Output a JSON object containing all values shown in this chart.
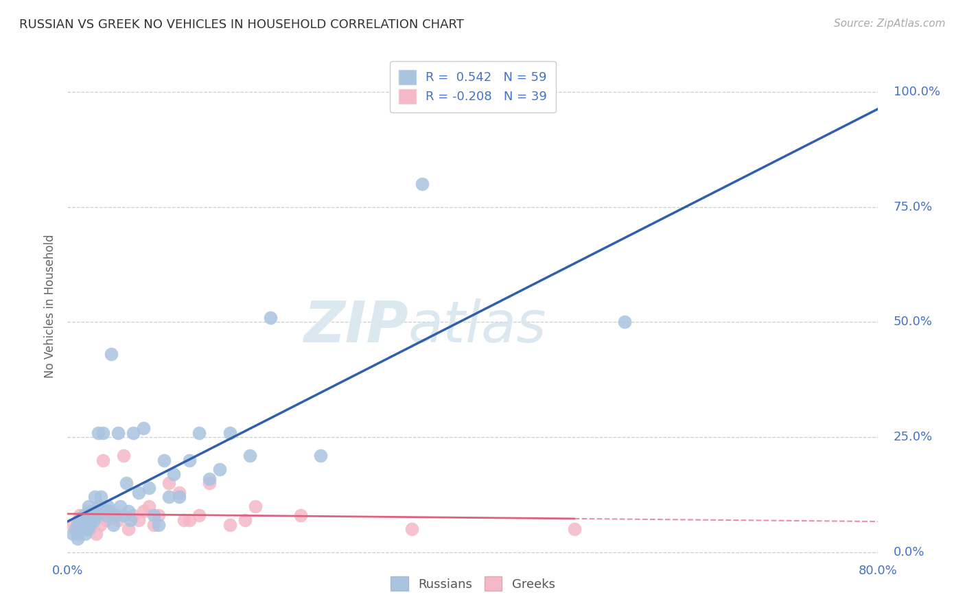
{
  "title": "RUSSIAN VS GREEK NO VEHICLES IN HOUSEHOLD CORRELATION CHART",
  "source": "Source: ZipAtlas.com",
  "ylabel": "No Vehicles in Household",
  "xlim": [
    0.0,
    0.8
  ],
  "ylim": [
    -0.01,
    1.08
  ],
  "yticks": [
    0.0,
    0.25,
    0.5,
    0.75,
    1.0
  ],
  "ytick_labels": [
    "0.0%",
    "25.0%",
    "50.0%",
    "75.0%",
    "100.0%"
  ],
  "xtick_labels": [
    "0.0%",
    "80.0%"
  ],
  "xtick_positions": [
    0.0,
    0.8
  ],
  "background_color": "#ffffff",
  "grid_color": "#cccccc",
  "watermark_zip": "ZIP",
  "watermark_atlas": "atlas",
  "russian_color": "#a8c4e0",
  "greek_color": "#f4b8c8",
  "russian_line_color": "#3060aa",
  "greek_line_color": "#e06080",
  "russian_R": 0.542,
  "russian_N": 59,
  "greek_R": -0.208,
  "greek_N": 39,
  "russians_x": [
    0.005,
    0.008,
    0.01,
    0.01,
    0.012,
    0.013,
    0.015,
    0.016,
    0.017,
    0.018,
    0.018,
    0.019,
    0.02,
    0.02,
    0.021,
    0.022,
    0.023,
    0.024,
    0.025,
    0.026,
    0.027,
    0.028,
    0.03,
    0.031,
    0.032,
    0.033,
    0.035,
    0.038,
    0.04,
    0.042,
    0.043,
    0.045,
    0.048,
    0.05,
    0.052,
    0.055,
    0.058,
    0.06,
    0.062,
    0.065,
    0.07,
    0.075,
    0.08,
    0.085,
    0.09,
    0.095,
    0.1,
    0.105,
    0.11,
    0.12,
    0.13,
    0.14,
    0.15,
    0.16,
    0.18,
    0.2,
    0.25,
    0.35,
    0.55
  ],
  "russians_y": [
    0.04,
    0.05,
    0.06,
    0.03,
    0.07,
    0.05,
    0.06,
    0.08,
    0.04,
    0.05,
    0.06,
    0.07,
    0.08,
    0.05,
    0.1,
    0.06,
    0.07,
    0.09,
    0.08,
    0.07,
    0.12,
    0.08,
    0.26,
    0.09,
    0.1,
    0.12,
    0.26,
    0.08,
    0.1,
    0.09,
    0.43,
    0.06,
    0.08,
    0.26,
    0.1,
    0.08,
    0.15,
    0.09,
    0.07,
    0.26,
    0.13,
    0.27,
    0.14,
    0.08,
    0.06,
    0.2,
    0.12,
    0.17,
    0.12,
    0.2,
    0.26,
    0.16,
    0.18,
    0.26,
    0.21,
    0.51,
    0.21,
    0.8,
    0.5
  ],
  "greeks_x": [
    0.005,
    0.008,
    0.01,
    0.012,
    0.014,
    0.016,
    0.018,
    0.02,
    0.022,
    0.024,
    0.026,
    0.028,
    0.03,
    0.032,
    0.035,
    0.038,
    0.04,
    0.045,
    0.05,
    0.055,
    0.06,
    0.065,
    0.07,
    0.075,
    0.08,
    0.085,
    0.09,
    0.1,
    0.11,
    0.115,
    0.12,
    0.13,
    0.14,
    0.16,
    0.175,
    0.185,
    0.23,
    0.34,
    0.5
  ],
  "greeks_y": [
    0.06,
    0.05,
    0.04,
    0.08,
    0.06,
    0.07,
    0.05,
    0.09,
    0.05,
    0.06,
    0.07,
    0.04,
    0.1,
    0.06,
    0.2,
    0.07,
    0.09,
    0.08,
    0.07,
    0.21,
    0.05,
    0.08,
    0.07,
    0.09,
    0.1,
    0.06,
    0.08,
    0.15,
    0.13,
    0.07,
    0.07,
    0.08,
    0.15,
    0.06,
    0.07,
    0.1,
    0.08,
    0.05,
    0.05
  ]
}
